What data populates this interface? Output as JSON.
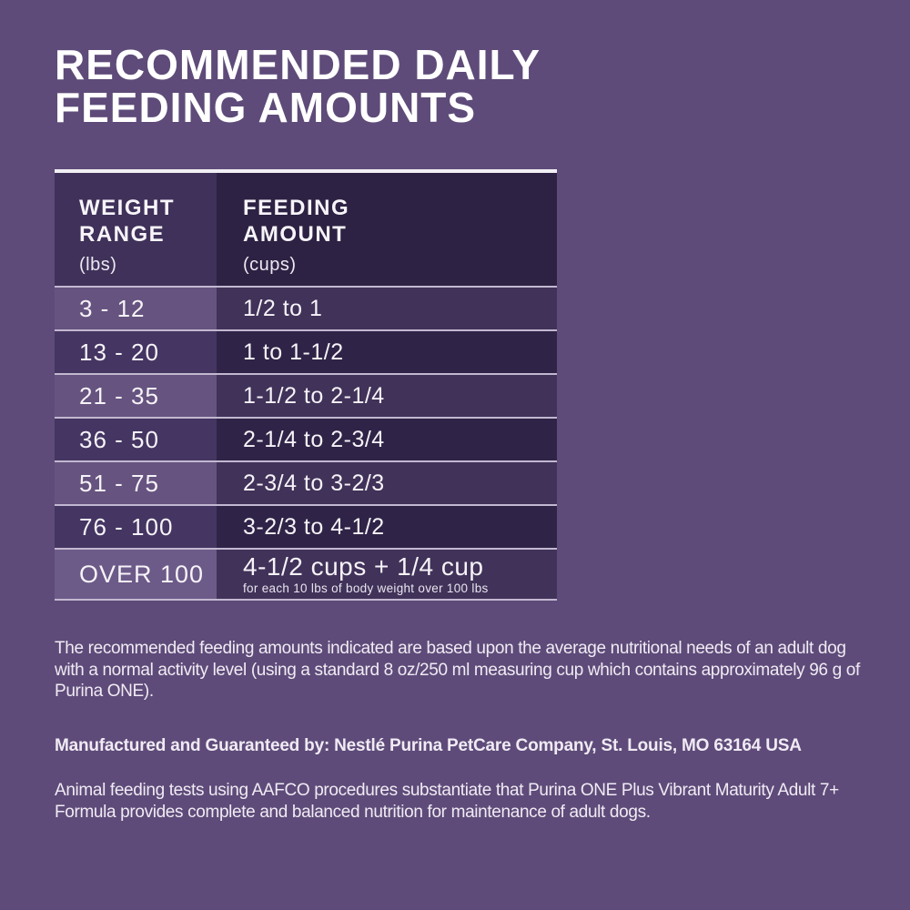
{
  "title": {
    "line1": "RECOMMENDED DAILY",
    "line2": "FEEDING AMOUNTS"
  },
  "table": {
    "columns": [
      {
        "title_line1": "WEIGHT",
        "title_line2": "RANGE",
        "unit": "(lbs)"
      },
      {
        "title_line1": "FEEDING",
        "title_line2": "AMOUNT",
        "unit": "(cups)"
      }
    ],
    "rows": [
      {
        "weight": "3 - 12",
        "amount": "1/2 to 1",
        "shade": "light"
      },
      {
        "weight": "13 - 20",
        "amount": "1 to 1-1/2",
        "shade": "dark"
      },
      {
        "weight": "21 - 35",
        "amount": "1-1/2 to 2-1/4",
        "shade": "light"
      },
      {
        "weight": "36 - 50",
        "amount": "2-1/4 to 2-3/4",
        "shade": "dark"
      },
      {
        "weight": "51 - 75",
        "amount": "2-3/4 to 3-2/3",
        "shade": "light"
      },
      {
        "weight": "76 - 100",
        "amount": "3-2/3 to 4-1/2",
        "shade": "dark"
      },
      {
        "weight": "OVER 100",
        "amount": "4-1/2 cups + 1/4 cup",
        "amount_note": "for each 10 lbs of body weight over 100 lbs",
        "shade": "over"
      }
    ]
  },
  "notes": {
    "paragraph1": "The recommended feeding amounts indicated are based upon the average nutritional needs of an adult dog with a normal activity level (using a standard 8 oz/250 ml measuring cup which contains approximately 96 g of Purina ONE).",
    "manufacturer": "Manufactured and Guaranteed by: Nestlé Purina PetCare Company, St. Louis, MO 63164 USA",
    "aafco": "Animal feeding tests using AAFCO procedures substantiate that Purina ONE Plus Vibrant Maturity Adult 7+ Formula provides complete and balanced nutrition for maintenance of adult dogs."
  },
  "colors": {
    "background": "#5E4B79",
    "header_left_cell": "#3F3159",
    "header_right_cell": "#2D2243",
    "light_row_left_cell": "#66537F",
    "light_row_right_cell": "#413259",
    "dark_row_left_cell": "#443562",
    "dark_row_right_cell": "#2F2447",
    "separator_line": "#C2B8D1",
    "table_top_border": "#F2EFF5",
    "text": "#FFFFFF"
  }
}
